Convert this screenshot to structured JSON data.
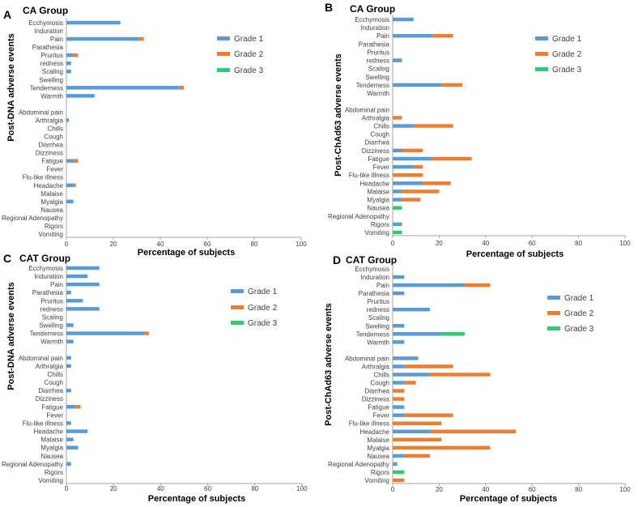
{
  "colors": {
    "grade1": "#5b9bd5",
    "grade2": "#ed7d31",
    "grade3": "#2ecc71",
    "axis": "#a6a6a6"
  },
  "chart_data": [
    {
      "type": "bar",
      "stacked": true,
      "orientation": "horizontal",
      "panel_letter": "A",
      "title": "CA Group",
      "xlabel": "Percentage of subjects",
      "ylabel": "Post-DNA adverse events",
      "xlim": [
        0,
        100
      ],
      "xticks": [
        0,
        20,
        40,
        60,
        80,
        100
      ],
      "legend_position": "top-right",
      "categories": [
        "Ecchymosis",
        "Induration",
        "Pain",
        "Parathesia",
        "Pruritus",
        "redness",
        "Scaling",
        "Swelling",
        "Tenderness",
        "Warmth",
        "",
        "Abdominal pain",
        "Arthralgia",
        "Chills",
        "Cough",
        "Diarrhea",
        "Dizziness",
        "Fatigue",
        "Fever",
        "Flu-like illness",
        "Headache",
        "Malaise",
        "Myalgia",
        "Nausea",
        "Regional Adenopathy",
        "Rigors",
        "Vomiting"
      ],
      "series": [
        {
          "name": "Grade 1",
          "values": [
            23,
            0,
            31,
            0,
            3,
            2,
            2,
            0,
            48,
            12,
            0,
            0,
            1,
            0,
            0,
            0,
            0,
            3,
            0,
            0,
            3,
            0,
            3,
            0,
            0,
            0,
            0
          ]
        },
        {
          "name": "Grade 2",
          "values": [
            0,
            0,
            2,
            0,
            2,
            0,
            0,
            0,
            2,
            0,
            0,
            0,
            0,
            0,
            0,
            0,
            0,
            2,
            0,
            0,
            1,
            0,
            0,
            0,
            0,
            0,
            0
          ]
        },
        {
          "name": "Grade 3",
          "values": [
            0,
            0,
            0,
            0,
            0,
            0,
            0,
            0,
            0,
            0,
            0,
            0,
            0,
            0,
            0,
            0,
            0,
            0,
            0,
            0,
            0,
            0,
            0,
            0,
            0,
            0,
            0
          ]
        }
      ]
    },
    {
      "type": "bar",
      "stacked": true,
      "orientation": "horizontal",
      "panel_letter": "B",
      "title": "CA Group",
      "xlabel": "Percentage of subjects",
      "ylabel": "Post-ChAd63 adverse events",
      "xlim": [
        0,
        100
      ],
      "xticks": [
        0,
        20,
        40,
        60,
        80,
        100
      ],
      "legend_position": "top-right",
      "categories": [
        "Ecchymosis",
        "Induration",
        "Pain",
        "Parathesia",
        "Pruritus",
        "redness",
        "Scaling",
        "Swelling",
        "Tenderness",
        "Warmth",
        "",
        "Abdominal pain",
        "Arthralgia",
        "Chills",
        "Cough",
        "Diarrhea",
        "Dizziness",
        "Fatigue",
        "Fever",
        "Flu-like illness",
        "Headache",
        "Malaise",
        "Myalgia",
        "Nausea",
        "Regional Adenopathy",
        "Rigors",
        "Vomiting"
      ],
      "series": [
        {
          "name": "Grade 1",
          "values": [
            9,
            0,
            17,
            0,
            0,
            4,
            0,
            0,
            21,
            0,
            0,
            0,
            0,
            9,
            0,
            0,
            4,
            17,
            9,
            0,
            13,
            4,
            4,
            0,
            0,
            4,
            0
          ]
        },
        {
          "name": "Grade 2",
          "values": [
            0,
            0,
            9,
            0,
            0,
            0,
            0,
            0,
            9,
            0,
            0,
            0,
            4,
            17,
            0,
            0,
            9,
            17,
            4,
            13,
            12,
            16,
            8,
            0,
            0,
            0,
            0
          ]
        },
        {
          "name": "Grade 3",
          "values": [
            0,
            0,
            0,
            0,
            0,
            0,
            0,
            0,
            0,
            0,
            0,
            0,
            0,
            0,
            0,
            0,
            0,
            0,
            0,
            0,
            0,
            0,
            0,
            4,
            0,
            0,
            4
          ]
        }
      ]
    },
    {
      "type": "bar",
      "stacked": true,
      "orientation": "horizontal",
      "panel_letter": "C",
      "title": "CAT Group",
      "xlabel": "Percentage of subjects",
      "ylabel": "Post-DNA adverse events",
      "xlim": [
        0,
        100
      ],
      "xticks": [
        0,
        20,
        40,
        60,
        80,
        100
      ],
      "legend_position": "top-right",
      "categories": [
        "Ecchymosis",
        "Induration",
        "Pain",
        "Parathesia",
        "Pruritus",
        "redness",
        "Scaling",
        "Swelling",
        "Tenderness",
        "Warmth",
        "",
        "Abdominal pain",
        "Arthralgia",
        "Chills",
        "Cough",
        "Diarrhea",
        "Dizziness",
        "Fatigue",
        "Fever",
        "Flu-like illness",
        "Headache",
        "Malaise",
        "Myalgia",
        "Nausea",
        "Regional Adenopathy",
        "Rigors",
        "Vomiting"
      ],
      "series": [
        {
          "name": "Grade 1",
          "values": [
            14,
            9,
            14,
            2,
            7,
            14,
            0,
            3,
            33,
            3,
            0,
            2,
            2,
            0,
            0,
            2,
            0,
            4,
            0,
            2,
            9,
            3,
            5,
            0,
            2,
            0,
            0
          ]
        },
        {
          "name": "Grade 2",
          "values": [
            0,
            0,
            0,
            0,
            0,
            0,
            0,
            0,
            2,
            0,
            0,
            0,
            0,
            0,
            0,
            0,
            0,
            2,
            0,
            0,
            0,
            0,
            0,
            0,
            0,
            0,
            0
          ]
        },
        {
          "name": "Grade 3",
          "values": [
            0,
            0,
            0,
            0,
            0,
            0,
            0,
            0,
            0,
            0,
            0,
            0,
            0,
            0,
            0,
            0,
            0,
            0,
            0,
            0,
            0,
            0,
            0,
            0,
            0,
            0,
            0
          ]
        }
      ]
    },
    {
      "type": "bar",
      "stacked": true,
      "orientation": "horizontal",
      "panel_letter": "D",
      "title": "CAT Group",
      "xlabel": "Percentage of subjects",
      "ylabel": "Post-ChAd63 adverse events",
      "xlim": [
        0,
        100
      ],
      "xticks": [
        0,
        20,
        40,
        60,
        80,
        100
      ],
      "legend_position": "top-right",
      "categories": [
        "Ecchymosis",
        "Induration",
        "Pain",
        "Parathesia",
        "Pruritus",
        "redness",
        "Scaling",
        "Swelling",
        "Tenderness",
        "Warmth",
        "",
        "Abdominal pain",
        "Arthralgia",
        "Chills",
        "Cough",
        "Diarrhea",
        "Dizziness",
        "Fatigue",
        "Fever",
        "Flu-like illness",
        "Headache",
        "Malaise",
        "Myalgia",
        "Nausea",
        "Regional Adenopathy",
        "Rigors",
        "Vomiting"
      ],
      "series": [
        {
          "name": "Grade 1",
          "values": [
            0,
            5,
            31,
            5,
            0,
            16,
            0,
            5,
            21,
            5,
            0,
            11,
            5,
            16,
            5,
            0,
            0,
            5,
            5,
            0,
            16,
            0,
            0,
            5,
            2,
            0,
            0
          ]
        },
        {
          "name": "Grade 2",
          "values": [
            0,
            0,
            11,
            0,
            0,
            0,
            0,
            0,
            0,
            0,
            0,
            0,
            21,
            26,
            5,
            5,
            5,
            0,
            21,
            21,
            37,
            21,
            42,
            11,
            0,
            0,
            5
          ]
        },
        {
          "name": "Grade 3",
          "values": [
            0,
            0,
            0,
            0,
            0,
            0,
            0,
            0,
            10,
            0,
            0,
            0,
            0,
            0,
            0,
            0,
            0,
            0,
            0,
            0,
            0,
            0,
            0,
            0,
            0,
            5,
            0
          ]
        }
      ]
    }
  ]
}
